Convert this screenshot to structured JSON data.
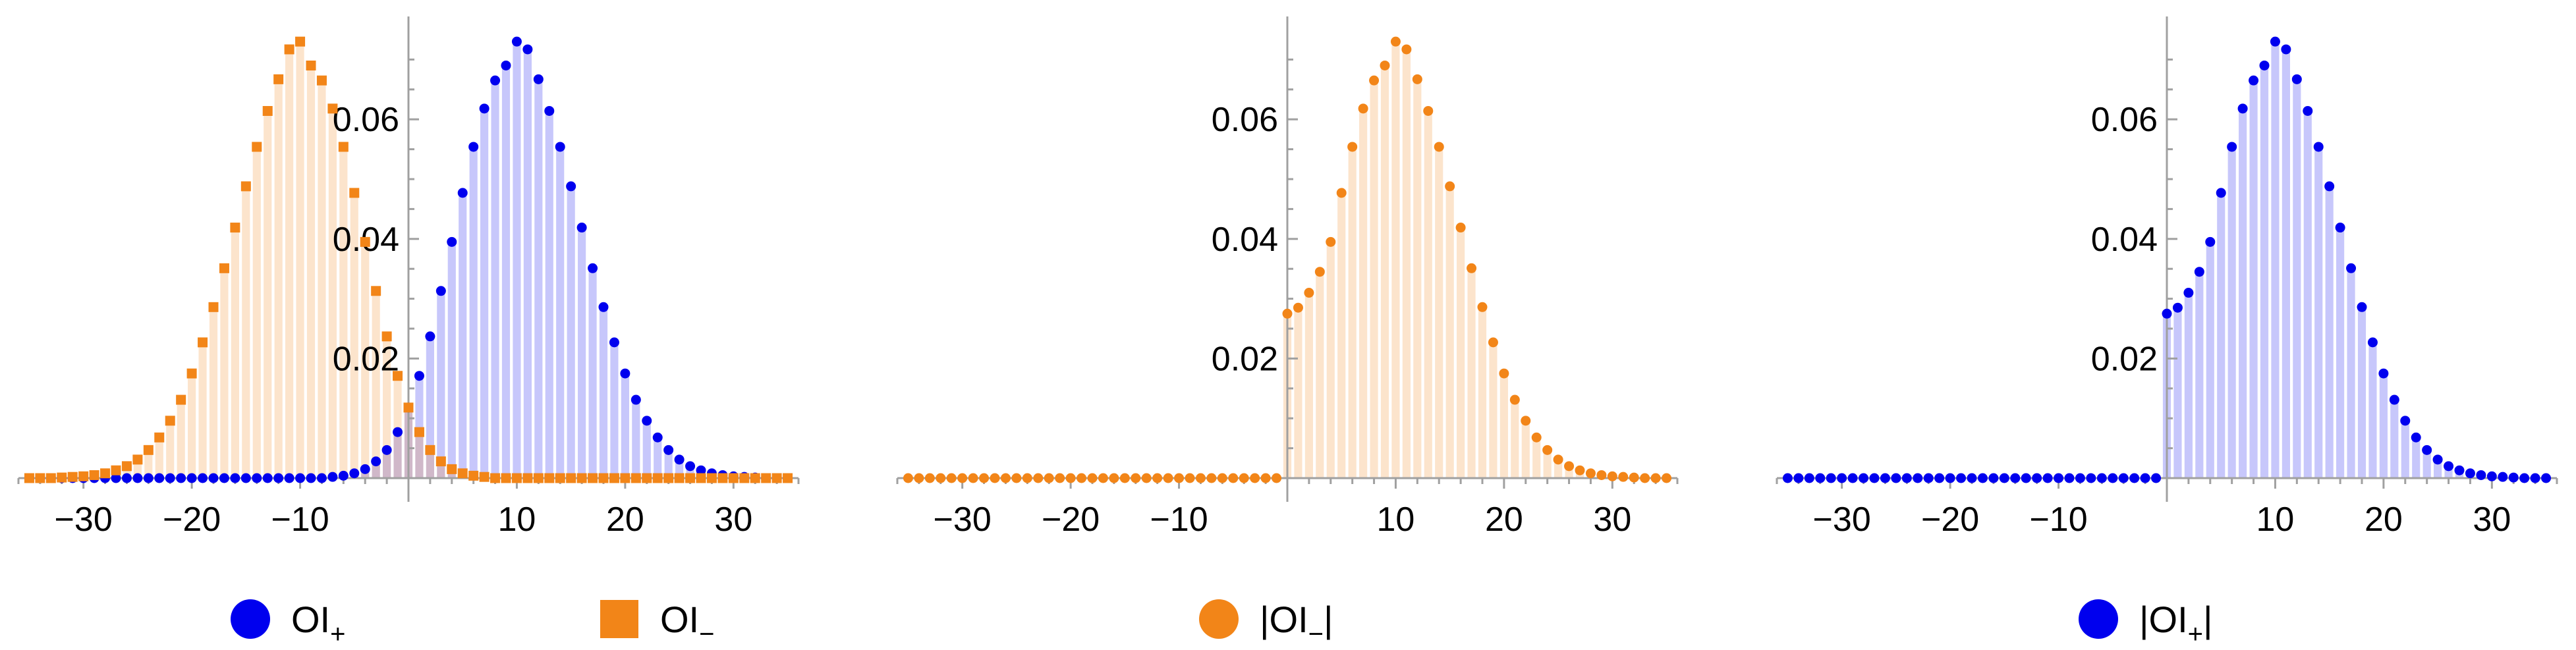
{
  "colors": {
    "blue": "#0000ee",
    "orange": "#f28518",
    "axis": "#a0a0a0",
    "bar_opacity": 0.22
  },
  "chart_data": [
    {
      "type": "bar",
      "overlay": "scatter points at bar tops",
      "x": [
        -35,
        -34,
        -33,
        -32,
        -31,
        -30,
        -29,
        -28,
        -27,
        -26,
        -25,
        -24,
        -23,
        -22,
        -21,
        -20,
        -19,
        -18,
        -17,
        -16,
        -15,
        -14,
        -13,
        -12,
        -11,
        -10,
        -9,
        -8,
        -7,
        -6,
        -5,
        -4,
        -3,
        -2,
        -1,
        0,
        1,
        2,
        3,
        4,
        5,
        6,
        7,
        8,
        9,
        10,
        11,
        12,
        13,
        14,
        15,
        16,
        17,
        18,
        19,
        20,
        21,
        22,
        23,
        24,
        25,
        26,
        27,
        28,
        29,
        30,
        31,
        32,
        33,
        34,
        35
      ],
      "series": [
        {
          "name": "OI+",
          "label_main": "OI",
          "label_sub": "+",
          "marker": "circle",
          "color": "#0000ee",
          "values": [
            0,
            0,
            0,
            0,
            0,
            0,
            0,
            0,
            0,
            0,
            0,
            0,
            0,
            0,
            0,
            0,
            0,
            0,
            0,
            0,
            0,
            0,
            0,
            0,
            0,
            0,
            0,
            0,
            0.0002,
            0.0004,
            0.0008,
            0.0015,
            0.0028,
            0.0047,
            0.0077,
            0.0118,
            0.0171,
            0.0237,
            0.0313,
            0.0395,
            0.0477,
            0.0554,
            0.0618,
            0.0665,
            0.069,
            0.073,
            0.0717,
            0.0667,
            0.0614,
            0.0554,
            0.0488,
            0.0419,
            0.0351,
            0.0286,
            0.0227,
            0.0175,
            0.0131,
            0.0096,
            0.0068,
            0.0047,
            0.0031,
            0.002,
            0.0013,
            0.0008,
            0.0005,
            0.0003,
            0.0002,
            0.0001,
            0,
            0,
            0
          ]
        },
        {
          "name": "OI−",
          "label_main": "OI",
          "label_sub": "−",
          "marker": "square",
          "color": "#f28518",
          "values": [
            0,
            0,
            0,
            0.0001,
            0.0002,
            0.0003,
            0.0005,
            0.0008,
            0.0013,
            0.002,
            0.0031,
            0.0047,
            0.0068,
            0.0096,
            0.0131,
            0.0175,
            0.0227,
            0.0286,
            0.0351,
            0.0419,
            0.0488,
            0.0554,
            0.0614,
            0.0667,
            0.0717,
            0.073,
            0.069,
            0.0665,
            0.0618,
            0.0554,
            0.0477,
            0.0395,
            0.0313,
            0.0237,
            0.0171,
            0.0118,
            0.0077,
            0.0047,
            0.0028,
            0.0015,
            0.0008,
            0.0004,
            0.0002,
            0,
            0,
            0,
            0,
            0,
            0,
            0,
            0,
            0,
            0,
            0,
            0,
            0,
            0,
            0,
            0,
            0,
            0,
            0,
            0,
            0,
            0,
            0,
            0,
            0,
            0,
            0,
            0
          ]
        }
      ],
      "xticks": [
        -30,
        -20,
        -10,
        10,
        20,
        30
      ],
      "xtick_labels": [
        "−30",
        "−20",
        "−10",
        "10",
        "20",
        "30"
      ],
      "yticks": [
        0.02,
        0.04,
        0.06
      ],
      "ytick_labels": [
        "0.02",
        "0.04",
        "0.06"
      ],
      "xlim": [
        -36,
        36
      ],
      "ylim": [
        0,
        0.075
      ],
      "legend": "bottom"
    },
    {
      "type": "bar",
      "overlay": "scatter points at bar tops",
      "x": [
        -35,
        -34,
        -33,
        -32,
        -31,
        -30,
        -29,
        -28,
        -27,
        -26,
        -25,
        -24,
        -23,
        -22,
        -21,
        -20,
        -19,
        -18,
        -17,
        -16,
        -15,
        -14,
        -13,
        -12,
        -11,
        -10,
        -9,
        -8,
        -7,
        -6,
        -5,
        -4,
        -3,
        -2,
        -1,
        0,
        1,
        2,
        3,
        4,
        5,
        6,
        7,
        8,
        9,
        10,
        11,
        12,
        13,
        14,
        15,
        16,
        17,
        18,
        19,
        20,
        21,
        22,
        23,
        24,
        25,
        26,
        27,
        28,
        29,
        30,
        31,
        32,
        33,
        34,
        35
      ],
      "series": [
        {
          "name": "|OI−|",
          "label_main": "|OI",
          "label_sub": "−",
          "label_end": "|",
          "marker": "circle",
          "color": "#f28518",
          "values": [
            0,
            0,
            0,
            0,
            0,
            0,
            0,
            0,
            0,
            0,
            0,
            0,
            0,
            0,
            0,
            0,
            0,
            0,
            0,
            0,
            0,
            0,
            0,
            0,
            0,
            0,
            0,
            0,
            0,
            0,
            0,
            0,
            0,
            0,
            0,
            0.0275,
            0.0285,
            0.031,
            0.0345,
            0.0395,
            0.0477,
            0.0554,
            0.0618,
            0.0665,
            0.069,
            0.073,
            0.0717,
            0.0667,
            0.0614,
            0.0554,
            0.0488,
            0.0419,
            0.0351,
            0.0286,
            0.0227,
            0.0175,
            0.0131,
            0.0096,
            0.0068,
            0.0047,
            0.0031,
            0.002,
            0.0013,
            0.0008,
            0.0005,
            0.0003,
            0.0002,
            0.0001,
            0,
            0,
            0
          ]
        }
      ],
      "xticks": [
        -30,
        -20,
        -10,
        10,
        20,
        30
      ],
      "xtick_labels": [
        "−30",
        "−20",
        "−10",
        "10",
        "20",
        "30"
      ],
      "yticks": [
        0.02,
        0.04,
        0.06
      ],
      "ytick_labels": [
        "0.02",
        "0.04",
        "0.06"
      ],
      "xlim": [
        -36,
        36
      ],
      "ylim": [
        0,
        0.075
      ],
      "legend": "bottom"
    },
    {
      "type": "bar",
      "overlay": "scatter points at bar tops",
      "x": [
        -35,
        -34,
        -33,
        -32,
        -31,
        -30,
        -29,
        -28,
        -27,
        -26,
        -25,
        -24,
        -23,
        -22,
        -21,
        -20,
        -19,
        -18,
        -17,
        -16,
        -15,
        -14,
        -13,
        -12,
        -11,
        -10,
        -9,
        -8,
        -7,
        -6,
        -5,
        -4,
        -3,
        -2,
        -1,
        0,
        1,
        2,
        3,
        4,
        5,
        6,
        7,
        8,
        9,
        10,
        11,
        12,
        13,
        14,
        15,
        16,
        17,
        18,
        19,
        20,
        21,
        22,
        23,
        24,
        25,
        26,
        27,
        28,
        29,
        30,
        31,
        32,
        33,
        34,
        35
      ],
      "series": [
        {
          "name": "|OI+|",
          "label_main": "|OI",
          "label_sub": "+",
          "label_end": "|",
          "marker": "circle",
          "color": "#0000ee",
          "values": [
            0,
            0,
            0,
            0,
            0,
            0,
            0,
            0,
            0,
            0,
            0,
            0,
            0,
            0,
            0,
            0,
            0,
            0,
            0,
            0,
            0,
            0,
            0,
            0,
            0,
            0,
            0,
            0,
            0,
            0,
            0,
            0,
            0,
            0,
            0,
            0.0275,
            0.0285,
            0.031,
            0.0345,
            0.0395,
            0.0477,
            0.0554,
            0.0618,
            0.0665,
            0.069,
            0.073,
            0.0717,
            0.0667,
            0.0614,
            0.0554,
            0.0488,
            0.0419,
            0.0351,
            0.0286,
            0.0227,
            0.0175,
            0.0131,
            0.0096,
            0.0068,
            0.0047,
            0.0031,
            0.002,
            0.0013,
            0.0008,
            0.0005,
            0.0003,
            0.0002,
            0.0001,
            0,
            0,
            0
          ]
        }
      ],
      "xticks": [
        -30,
        -20,
        -10,
        10,
        20,
        30
      ],
      "xtick_labels": [
        "−30",
        "−20",
        "−10",
        "10",
        "20",
        "30"
      ],
      "yticks": [
        0.02,
        0.04,
        0.06
      ],
      "ytick_labels": [
        "0.02",
        "0.04",
        "0.06"
      ],
      "xlim": [
        -36,
        36
      ],
      "ylim": [
        0,
        0.075
      ],
      "legend": "bottom"
    }
  ]
}
